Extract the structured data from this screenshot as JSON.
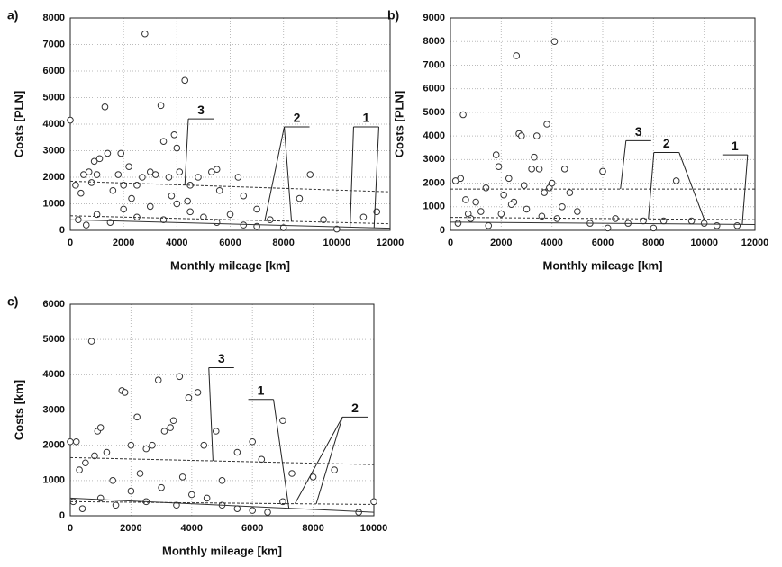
{
  "chart_data": [
    {
      "type": "scatter",
      "panel": "a)",
      "xlabel": "Monthly mileage [km]",
      "ylabel": "Costs [PLN]",
      "xlim": [
        0,
        12000
      ],
      "xticks": [
        0,
        2000,
        4000,
        6000,
        8000,
        10000,
        12000
      ],
      "ylim": [
        0,
        8000
      ],
      "yticks": [
        0,
        1000,
        2000,
        3000,
        4000,
        5000,
        6000,
        7000,
        8000
      ],
      "grid": true,
      "series": [
        {
          "color": "#333333",
          "x": [
            0,
            200,
            400,
            500,
            700,
            800,
            900,
            1000,
            1100,
            1300,
            1400,
            1600,
            1800,
            1900,
            2000,
            2200,
            2500,
            2700,
            2800,
            3000,
            3200,
            3400,
            3500,
            3700,
            3900,
            4000,
            4100,
            4300,
            4500,
            4800,
            5300,
            5500,
            5600,
            6300,
            6500,
            7000,
            7500,
            8600,
            9000,
            9500,
            11000,
            11500,
            300,
            600,
            1000,
            1500,
            2000,
            2500,
            3000,
            3500,
            4000,
            4500,
            5000,
            5500,
            6000,
            6500,
            7000,
            8000,
            10000,
            2300,
            3800,
            4400
          ],
          "values": [
            4150,
            1700,
            1400,
            2100,
            2200,
            1800,
            2600,
            2100,
            2700,
            4650,
            2900,
            1500,
            2100,
            2900,
            1700,
            2400,
            1700,
            2000,
            7400,
            2200,
            2100,
            4700,
            3350,
            2000,
            3600,
            3100,
            2200,
            5650,
            1700,
            2000,
            2200,
            2300,
            1500,
            2000,
            1300,
            800,
            400,
            1200,
            2100,
            400,
            500,
            700,
            400,
            200,
            600,
            300,
            800,
            500,
            900,
            400,
            1000,
            700,
            500,
            300,
            600,
            200,
            150,
            100,
            50,
            1200,
            1300,
            1100
          ]
        }
      ],
      "trend_lines": [
        {
          "label": "3",
          "style": "dashed",
          "x": [
            0,
            12000
          ],
          "values": [
            1850,
            1450
          ]
        },
        {
          "label": "2",
          "style": "dashed",
          "x": [
            0,
            12000
          ],
          "values": [
            550,
            250
          ]
        },
        {
          "label": "1",
          "style": "solid",
          "x": [
            0,
            12000
          ],
          "values": [
            400,
            80
          ]
        }
      ]
    },
    {
      "type": "scatter",
      "panel": "b)",
      "xlabel": "Monthly mileage [km]",
      "ylabel": "Costs [PLN]",
      "xlim": [
        0,
        12000
      ],
      "xticks": [
        0,
        2000,
        4000,
        6000,
        8000,
        10000,
        12000
      ],
      "ylim": [
        0,
        9000
      ],
      "yticks": [
        0,
        1000,
        2000,
        3000,
        4000,
        5000,
        6000,
        7000,
        8000,
        9000
      ],
      "grid": true,
      "series": [
        {
          "color": "#333333",
          "x": [
            200,
            400,
            500,
            600,
            700,
            1000,
            1200,
            1400,
            1800,
            1900,
            2100,
            2300,
            2500,
            2600,
            2700,
            2800,
            2900,
            3200,
            3300,
            3400,
            3500,
            3700,
            3800,
            3900,
            4000,
            4100,
            4500,
            4700,
            5000,
            6000,
            6500,
            7000,
            7600,
            8400,
            8900,
            9500,
            10000,
            11300,
            300,
            800,
            1500,
            2000,
            3000,
            3600,
            4200,
            5500,
            6200,
            8000,
            10500,
            2400,
            4400
          ],
          "values": [
            2100,
            2200,
            4900,
            1300,
            700,
            1200,
            800,
            1800,
            3200,
            2700,
            1500,
            2200,
            1200,
            7400,
            4100,
            4000,
            1900,
            2600,
            3100,
            4000,
            2600,
            1600,
            4500,
            1800,
            2000,
            8000,
            2600,
            1600,
            800,
            2500,
            500,
            300,
            400,
            400,
            2100,
            400,
            300,
            200,
            300,
            500,
            200,
            700,
            900,
            600,
            500,
            300,
            100,
            100,
            200,
            1100,
            1000
          ]
        }
      ],
      "trend_lines": [
        {
          "label": "3",
          "style": "dashed",
          "x": [
            0,
            12000
          ],
          "values": [
            1750,
            1750
          ]
        },
        {
          "label": "2",
          "style": "dashed",
          "x": [
            0,
            12000
          ],
          "values": [
            550,
            450
          ]
        },
        {
          "label": "1",
          "style": "solid",
          "x": [
            0,
            12000
          ],
          "values": [
            350,
            250
          ]
        }
      ]
    },
    {
      "type": "scatter",
      "panel": "c)",
      "xlabel": "Monthly mileage [km]",
      "ylabel": "Costs [km]",
      "xlim": [
        0,
        10000
      ],
      "xticks": [
        0,
        2000,
        4000,
        6000,
        8000,
        10000
      ],
      "ylim": [
        0,
        6000
      ],
      "yticks": [
        0,
        1000,
        2000,
        3000,
        4000,
        5000,
        6000
      ],
      "grid": true,
      "series": [
        {
          "color": "#333333",
          "x": [
            0,
            200,
            300,
            500,
            700,
            800,
            900,
            1000,
            1200,
            1400,
            1700,
            1800,
            2000,
            2200,
            2500,
            2700,
            2900,
            3100,
            3300,
            3400,
            3600,
            3900,
            4200,
            4400,
            4800,
            5000,
            5500,
            6000,
            6300,
            7000,
            7300,
            8000,
            8700,
            9500,
            10000,
            100,
            400,
            1000,
            1500,
            2000,
            2500,
            3000,
            3500,
            4000,
            4500,
            5000,
            5500,
            6000,
            6500,
            7000,
            2300,
            3700
          ],
          "values": [
            2100,
            2100,
            1300,
            1500,
            4950,
            1700,
            2400,
            2500,
            1800,
            1000,
            3550,
            3500,
            2000,
            2800,
            1900,
            2000,
            3850,
            2400,
            2500,
            2700,
            3950,
            3350,
            3500,
            2000,
            2400,
            1000,
            1800,
            2100,
            1600,
            2700,
            1200,
            1100,
            1300,
            100,
            400,
            400,
            200,
            500,
            300,
            700,
            400,
            800,
            300,
            600,
            500,
            300,
            200,
            150,
            100,
            400,
            1200,
            1100
          ]
        }
      ],
      "trend_lines": [
        {
          "label": "3",
          "style": "dashed",
          "x": [
            0,
            10000
          ],
          "values": [
            1650,
            1450
          ]
        },
        {
          "label": "1",
          "style": "solid",
          "x": [
            0,
            10000
          ],
          "values": [
            500,
            100
          ]
        },
        {
          "label": "2",
          "style": "dashed",
          "x": [
            0,
            10000
          ],
          "values": [
            400,
            320
          ]
        }
      ]
    }
  ]
}
